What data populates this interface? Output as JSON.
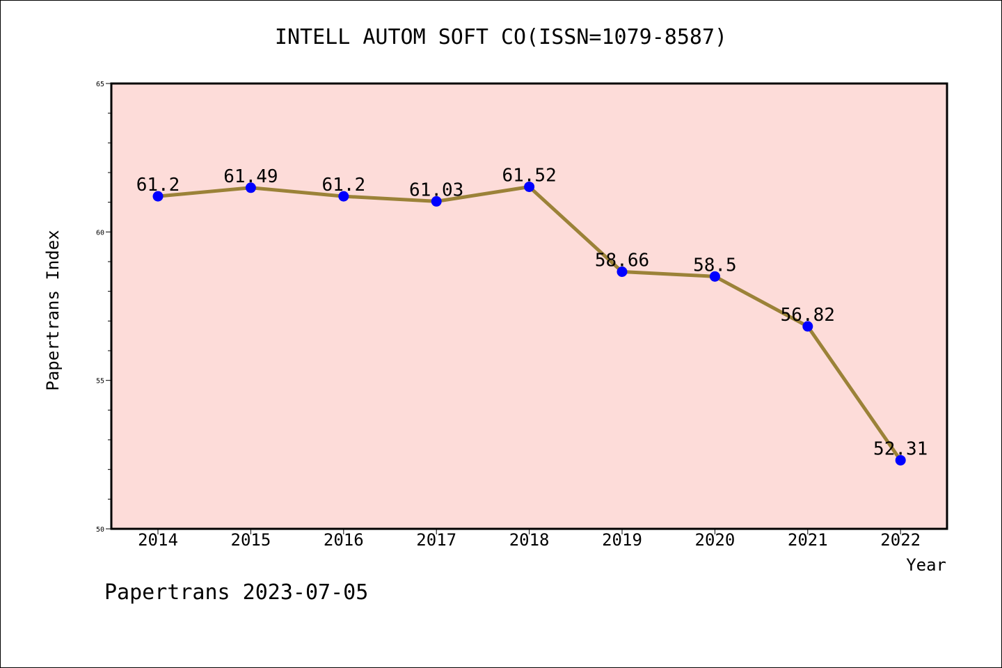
{
  "chart_data": {
    "type": "line",
    "title": "INTELL AUTOM SOFT CO(ISSN=1079-8587)",
    "xlabel": "Year",
    "ylabel": "Papertrans Index",
    "categories": [
      "2014",
      "2015",
      "2016",
      "2017",
      "2018",
      "2019",
      "2020",
      "2021",
      "2022"
    ],
    "series": [
      {
        "values": [
          61.2,
          61.49,
          61.2,
          61.03,
          61.52,
          58.66,
          58.5,
          56.82,
          52.31
        ],
        "data_labels": [
          "61.2",
          "61.49",
          "61.2",
          "61.03",
          "61.52",
          "58.66",
          "58.5",
          "56.82",
          "52.31"
        ],
        "line_color": "#9B8238",
        "marker_color": "#0000FF"
      }
    ],
    "ylim": [
      50,
      65
    ],
    "yticks": [
      50,
      55,
      60,
      65
    ],
    "plot_background": "#FDDCD9",
    "grid": false,
    "legend": "none"
  },
  "footer": "Papertrans 2023-07-05"
}
